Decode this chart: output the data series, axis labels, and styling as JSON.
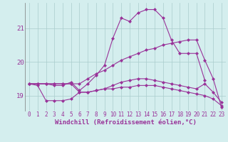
{
  "x": [
    0,
    1,
    2,
    3,
    4,
    5,
    6,
    7,
    8,
    9,
    10,
    11,
    12,
    13,
    14,
    15,
    16,
    17,
    18,
    19,
    20,
    21,
    22,
    23
  ],
  "line1": [
    19.35,
    19.35,
    19.35,
    19.35,
    19.35,
    19.35,
    19.1,
    19.1,
    19.15,
    19.2,
    19.3,
    19.4,
    19.45,
    19.5,
    19.5,
    19.45,
    19.4,
    19.35,
    19.3,
    19.25,
    19.2,
    19.35,
    19.1,
    18.8
  ],
  "line2": [
    19.35,
    19.3,
    18.85,
    18.85,
    18.85,
    18.9,
    19.1,
    19.1,
    19.15,
    19.2,
    19.2,
    19.25,
    19.25,
    19.3,
    19.3,
    19.3,
    19.25,
    19.2,
    19.15,
    19.1,
    19.05,
    19.0,
    18.9,
    18.7
  ],
  "line3": [
    19.35,
    19.35,
    19.35,
    19.3,
    19.3,
    19.4,
    19.15,
    19.35,
    19.6,
    19.9,
    20.7,
    21.3,
    21.2,
    21.45,
    21.55,
    21.55,
    21.3,
    20.65,
    20.25,
    20.25,
    20.25,
    19.45,
    null,
    null
  ],
  "line4": [
    19.35,
    19.35,
    19.35,
    19.35,
    19.35,
    19.35,
    19.35,
    19.5,
    19.65,
    19.75,
    19.9,
    20.05,
    20.15,
    20.25,
    20.35,
    20.4,
    20.5,
    20.55,
    20.6,
    20.65,
    20.65,
    20.05,
    19.5,
    18.65
  ],
  "background_color": "#d4eeee",
  "line_color": "#993399",
  "grid_color": "#aacccc",
  "xlabel": "Windchill (Refroidissement éolien,°C)",
  "ylim": [
    18.55,
    21.75
  ],
  "xlim": [
    -0.5,
    23.5
  ],
  "yticks": [
    19,
    20,
    21
  ],
  "xticks": [
    0,
    1,
    2,
    3,
    4,
    5,
    6,
    7,
    8,
    9,
    10,
    11,
    12,
    13,
    14,
    15,
    16,
    17,
    18,
    19,
    20,
    21,
    22,
    23
  ],
  "fontsize": 6.5,
  "marker": "D",
  "markersize": 2.0,
  "linewidth": 0.8
}
